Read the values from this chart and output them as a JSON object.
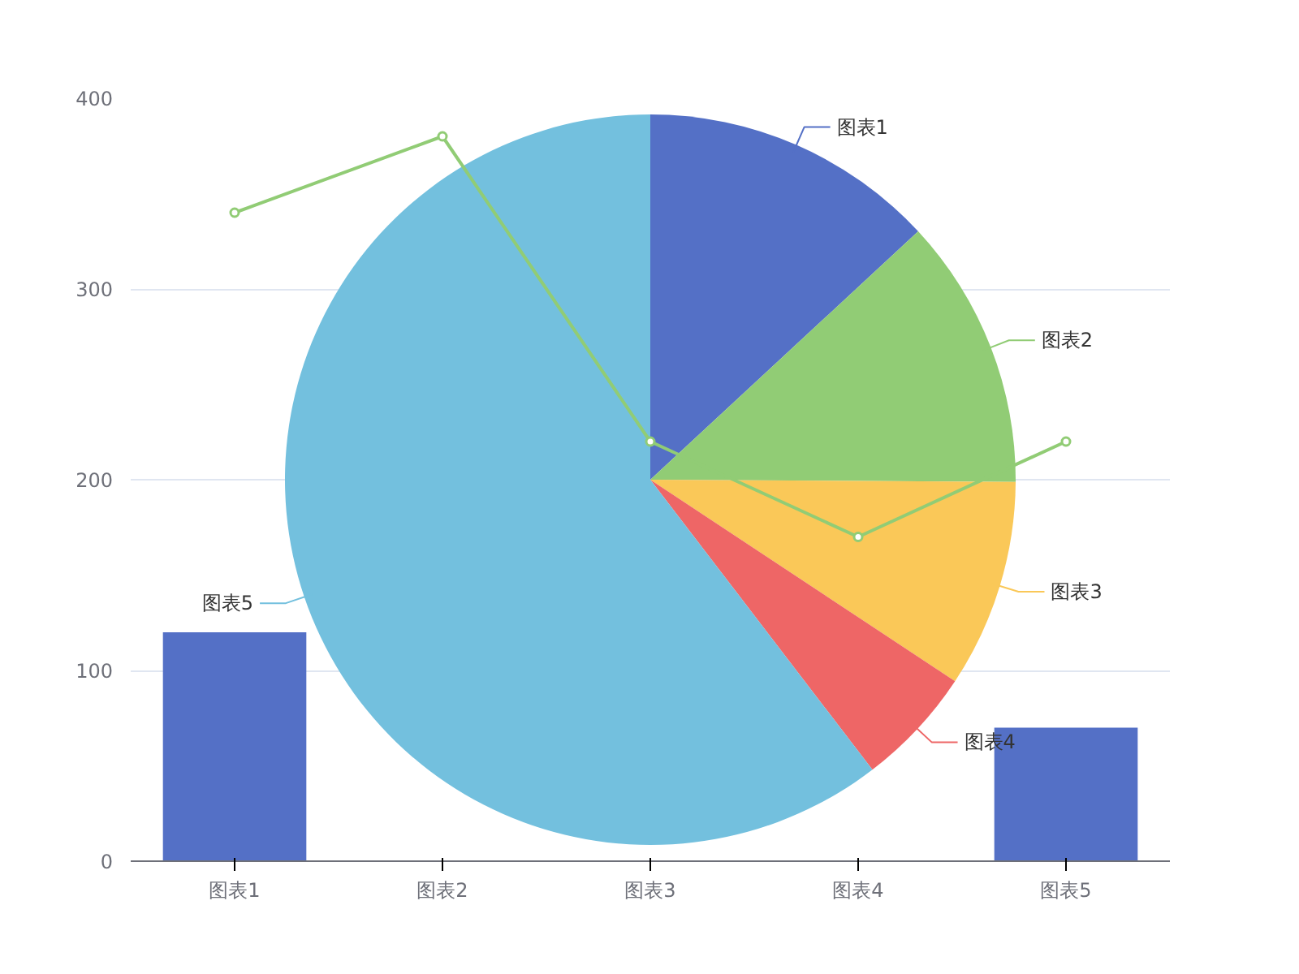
{
  "chart_data": [
    {
      "type": "bar",
      "categories": [
        "图表1",
        "图表2",
        "图表3",
        "图表4",
        "图表5"
      ],
      "ylim": [
        0,
        400
      ],
      "yticks": [
        0,
        100,
        200,
        300,
        400
      ],
      "grid": "y",
      "series": [
        {
          "type": "bar",
          "color": "#5470c6",
          "values": [
            120,
            null,
            null,
            null,
            70
          ]
        },
        {
          "type": "line",
          "color": "#91cc75",
          "marker": "circle",
          "values": [
            340,
            380,
            220,
            170,
            220
          ]
        }
      ]
    },
    {
      "type": "pie",
      "categories": [
        "图表1",
        "图表2",
        "图表3",
        "图表4",
        "图表5"
      ],
      "values": [
        13.1,
        12.0,
        9.2,
        5.3,
        60.4
      ],
      "colors": [
        "#5470c6",
        "#91cc75",
        "#fac858",
        "#ee6666",
        "#73c0de"
      ]
    }
  ]
}
